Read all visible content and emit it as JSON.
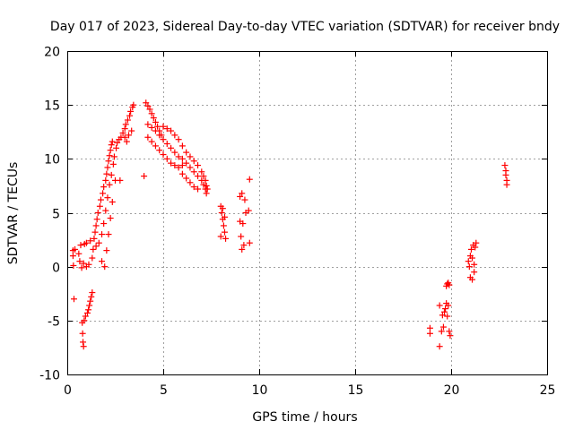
{
  "chart_data": {
    "type": "scatter",
    "title": "Day 017 of 2023, Sidereal Day-to-day VTEC variation (SDTVAR) for receiver bndy",
    "xlabel": "GPS time / hours",
    "ylabel": "SDTVAR / TECUs",
    "xlim": [
      0,
      25
    ],
    "ylim": [
      -10,
      20
    ],
    "xticks": [
      0,
      5,
      10,
      15,
      20,
      25
    ],
    "yticks": [
      -10,
      -5,
      0,
      5,
      10,
      15,
      20
    ],
    "xtick_labels": [
      "0",
      "5",
      "10",
      "15",
      "20",
      "25"
    ],
    "ytick_labels": [
      "-10",
      "-5",
      "0",
      "5",
      "10",
      "15",
      "20"
    ],
    "grid": true,
    "marker": "+",
    "marker_color": "#ff0000",
    "series": [
      {
        "name": "SDTVAR",
        "points": [
          [
            0.3,
            1.5
          ],
          [
            0.3,
            1.0
          ],
          [
            0.32,
            0.1
          ],
          [
            0.35,
            -3.0
          ],
          [
            0.4,
            1.6
          ],
          [
            0.6,
            1.2
          ],
          [
            0.65,
            0.5
          ],
          [
            0.7,
            2.0
          ],
          [
            0.75,
            -0.1
          ],
          [
            0.78,
            -5.2
          ],
          [
            0.8,
            -6.2
          ],
          [
            0.82,
            -7.0
          ],
          [
            0.85,
            -7.4
          ],
          [
            0.85,
            0.3
          ],
          [
            0.88,
            -5.0
          ],
          [
            0.9,
            2.1
          ],
          [
            0.95,
            -4.6
          ],
          [
            1.0,
            0.0
          ],
          [
            1.0,
            2.2
          ],
          [
            1.05,
            -4.3
          ],
          [
            1.1,
            -4.0
          ],
          [
            1.12,
            0.2
          ],
          [
            1.15,
            -3.6
          ],
          [
            1.2,
            -3.2
          ],
          [
            1.2,
            2.4
          ],
          [
            1.25,
            -2.8
          ],
          [
            1.3,
            -2.4
          ],
          [
            1.3,
            0.8
          ],
          [
            1.35,
            1.6
          ],
          [
            1.4,
            2.6
          ],
          [
            1.45,
            3.2
          ],
          [
            1.5,
            3.8
          ],
          [
            1.5,
            1.9
          ],
          [
            1.55,
            4.4
          ],
          [
            1.6,
            5.0
          ],
          [
            1.65,
            2.2
          ],
          [
            1.7,
            5.6
          ],
          [
            1.75,
            6.2
          ],
          [
            1.8,
            0.5
          ],
          [
            1.8,
            3.0
          ],
          [
            1.85,
            6.8
          ],
          [
            1.9,
            7.4
          ],
          [
            1.9,
            4.0
          ],
          [
            1.95,
            0.0
          ],
          [
            2.0,
            8.0
          ],
          [
            2.0,
            5.2
          ],
          [
            2.05,
            8.6
          ],
          [
            2.05,
            1.5
          ],
          [
            2.1,
            9.2
          ],
          [
            2.1,
            6.4
          ],
          [
            2.15,
            9.8
          ],
          [
            2.15,
            3.0
          ],
          [
            2.2,
            10.3
          ],
          [
            2.2,
            7.6
          ],
          [
            2.25,
            10.8
          ],
          [
            2.25,
            4.5
          ],
          [
            2.3,
            11.3
          ],
          [
            2.3,
            8.5
          ],
          [
            2.35,
            11.6
          ],
          [
            2.35,
            6.0
          ],
          [
            2.4,
            9.5
          ],
          [
            2.45,
            10.2
          ],
          [
            2.5,
            8.0
          ],
          [
            2.55,
            11.0
          ],
          [
            2.6,
            11.5
          ],
          [
            2.7,
            11.8
          ],
          [
            2.75,
            8.0
          ],
          [
            2.8,
            12.0
          ],
          [
            2.9,
            12.4
          ],
          [
            3.0,
            12.8
          ],
          [
            3.0,
            12.0
          ],
          [
            3.05,
            13.2
          ],
          [
            3.1,
            11.6
          ],
          [
            3.15,
            13.6
          ],
          [
            3.2,
            12.2
          ],
          [
            3.25,
            14.0
          ],
          [
            3.3,
            14.4
          ],
          [
            3.35,
            12.6
          ],
          [
            3.4,
            14.8
          ],
          [
            3.45,
            15.0
          ],
          [
            4.0,
            8.4
          ],
          [
            4.1,
            15.2
          ],
          [
            4.2,
            14.9
          ],
          [
            4.3,
            14.6
          ],
          [
            4.4,
            14.2
          ],
          [
            4.5,
            13.8
          ],
          [
            4.6,
            13.4
          ],
          [
            4.7,
            13.0
          ],
          [
            4.8,
            12.6
          ],
          [
            4.9,
            12.2
          ],
          [
            4.2,
            13.2
          ],
          [
            4.4,
            12.9
          ],
          [
            4.6,
            12.6
          ],
          [
            4.8,
            12.2
          ],
          [
            5.0,
            11.8
          ],
          [
            5.2,
            11.4
          ],
          [
            5.4,
            11.0
          ],
          [
            5.6,
            10.6
          ],
          [
            5.8,
            10.2
          ],
          [
            4.2,
            12.0
          ],
          [
            4.4,
            11.6
          ],
          [
            4.6,
            11.2
          ],
          [
            4.8,
            10.8
          ],
          [
            5.0,
            10.4
          ],
          [
            5.2,
            10.0
          ],
          [
            5.4,
            9.6
          ],
          [
            5.6,
            9.4
          ],
          [
            5.8,
            9.2
          ],
          [
            6.0,
            9.4
          ],
          [
            5.0,
            13.0
          ],
          [
            5.2,
            12.8
          ],
          [
            5.4,
            12.6
          ],
          [
            5.6,
            12.2
          ],
          [
            5.8,
            11.8
          ],
          [
            6.0,
            11.2
          ],
          [
            6.2,
            10.6
          ],
          [
            6.4,
            10.2
          ],
          [
            6.6,
            9.8
          ],
          [
            6.8,
            9.4
          ],
          [
            7.0,
            8.8
          ],
          [
            7.1,
            8.4
          ],
          [
            7.2,
            8.0
          ],
          [
            7.25,
            7.5
          ],
          [
            7.3,
            7.2
          ],
          [
            6.0,
            10.0
          ],
          [
            6.2,
            9.6
          ],
          [
            6.4,
            9.2
          ],
          [
            6.6,
            8.8
          ],
          [
            6.8,
            8.4
          ],
          [
            7.0,
            8.0
          ],
          [
            7.1,
            7.6
          ],
          [
            7.2,
            7.2
          ],
          [
            7.25,
            6.8
          ],
          [
            6.0,
            8.6
          ],
          [
            6.2,
            8.2
          ],
          [
            6.4,
            7.8
          ],
          [
            6.6,
            7.4
          ],
          [
            6.8,
            7.2
          ],
          [
            8.0,
            5.6
          ],
          [
            8.05,
            5.0
          ],
          [
            8.1,
            4.4
          ],
          [
            8.15,
            3.8
          ],
          [
            8.2,
            3.2
          ],
          [
            8.25,
            2.6
          ],
          [
            8.0,
            2.8
          ],
          [
            8.1,
            5.4
          ],
          [
            8.2,
            4.6
          ],
          [
            9.0,
            6.5
          ],
          [
            9.0,
            4.2
          ],
          [
            9.05,
            2.8
          ],
          [
            9.1,
            1.6
          ],
          [
            9.1,
            6.8
          ],
          [
            9.15,
            4.0
          ],
          [
            9.2,
            2.0
          ],
          [
            9.25,
            6.2
          ],
          [
            9.3,
            5.0
          ],
          [
            9.45,
            5.2
          ],
          [
            9.5,
            8.1
          ],
          [
            9.5,
            2.2
          ],
          [
            18.9,
            -5.7
          ],
          [
            18.9,
            -6.2
          ],
          [
            19.4,
            -3.6
          ],
          [
            19.4,
            -7.4
          ],
          [
            19.5,
            -6.0
          ],
          [
            19.55,
            -4.5
          ],
          [
            19.6,
            -5.6
          ],
          [
            19.65,
            -4.2
          ],
          [
            19.7,
            -3.9
          ],
          [
            19.75,
            -3.4
          ],
          [
            19.8,
            -4.6
          ],
          [
            19.85,
            -3.6
          ],
          [
            19.9,
            -6.0
          ],
          [
            19.95,
            -6.4
          ],
          [
            19.75,
            -1.8
          ],
          [
            19.8,
            -1.6
          ],
          [
            19.85,
            -1.5
          ],
          [
            19.9,
            -1.7
          ],
          [
            20.9,
            0.5
          ],
          [
            20.95,
            0.0
          ],
          [
            21.0,
            1.0
          ],
          [
            21.0,
            -1.0
          ],
          [
            21.05,
            1.6
          ],
          [
            21.1,
            0.8
          ],
          [
            21.1,
            -1.2
          ],
          [
            21.15,
            2.0
          ],
          [
            21.2,
            0.2
          ],
          [
            21.2,
            -0.5
          ],
          [
            21.25,
            1.8
          ],
          [
            21.3,
            2.2
          ],
          [
            22.8,
            9.4
          ],
          [
            22.85,
            8.9
          ],
          [
            22.85,
            8.5
          ],
          [
            22.9,
            8.0
          ],
          [
            22.9,
            7.6
          ]
        ]
      }
    ]
  }
}
